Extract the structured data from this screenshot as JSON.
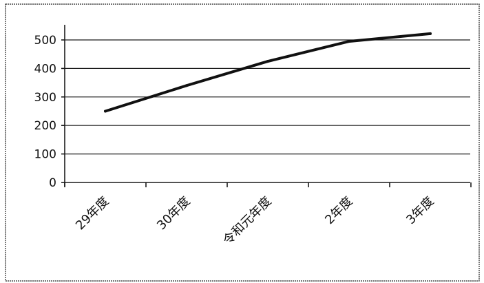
{
  "chart_data": {
    "type": "line",
    "categories": [
      "29年度",
      "30年度",
      "令和元年度",
      "2年度",
      "3年度"
    ],
    "series": [
      {
        "values": [
          250,
          340,
          425,
          495,
          522
        ]
      }
    ],
    "ylim": [
      0,
      500
    ],
    "yticks": [
      "0",
      "100",
      "200",
      "300",
      "400",
      "500"
    ],
    "grid": true,
    "legend": "none"
  }
}
